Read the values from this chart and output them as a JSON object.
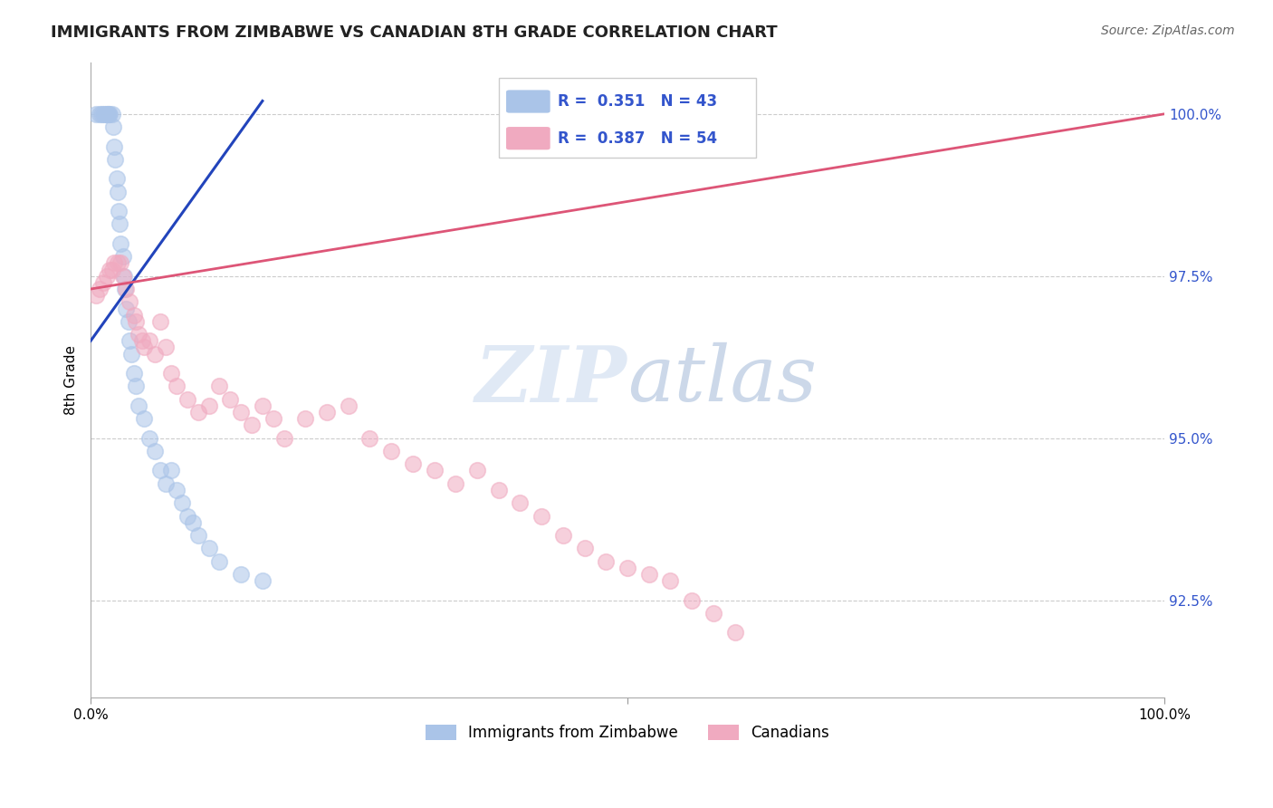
{
  "title": "IMMIGRANTS FROM ZIMBABWE VS CANADIAN 8TH GRADE CORRELATION CHART",
  "source_text": "Source: ZipAtlas.com",
  "ylabel": "8th Grade",
  "xlim": [
    0.0,
    1.0
  ],
  "ylim": [
    91.0,
    100.8
  ],
  "blue_R": 0.351,
  "blue_N": 43,
  "pink_R": 0.387,
  "pink_N": 54,
  "blue_color": "#aac4e8",
  "pink_color": "#f0aac0",
  "blue_line_color": "#2244bb",
  "pink_line_color": "#dd5577",
  "legend_label_blue": "Immigrants from Zimbabwe",
  "legend_label_pink": "Canadians",
  "blue_x": [
    0.005,
    0.008,
    0.01,
    0.012,
    0.013,
    0.015,
    0.016,
    0.017,
    0.018,
    0.02,
    0.021,
    0.022,
    0.023,
    0.024,
    0.025,
    0.026,
    0.027,
    0.028,
    0.03,
    0.031,
    0.032,
    0.033,
    0.035,
    0.036,
    0.038,
    0.04,
    0.042,
    0.045,
    0.05,
    0.055,
    0.06,
    0.065,
    0.07,
    0.075,
    0.08,
    0.085,
    0.09,
    0.095,
    0.1,
    0.11,
    0.12,
    0.14,
    0.16
  ],
  "blue_y": [
    100.0,
    100.0,
    100.0,
    100.0,
    100.0,
    100.0,
    100.0,
    100.0,
    100.0,
    100.0,
    99.8,
    99.5,
    99.3,
    99.0,
    98.8,
    98.5,
    98.3,
    98.0,
    97.8,
    97.5,
    97.3,
    97.0,
    96.8,
    96.5,
    96.3,
    96.0,
    95.8,
    95.5,
    95.3,
    95.0,
    94.8,
    94.5,
    94.3,
    94.5,
    94.2,
    94.0,
    93.8,
    93.7,
    93.5,
    93.3,
    93.1,
    92.9,
    92.8
  ],
  "pink_x": [
    0.005,
    0.008,
    0.012,
    0.015,
    0.018,
    0.02,
    0.022,
    0.025,
    0.028,
    0.03,
    0.033,
    0.036,
    0.04,
    0.042,
    0.045,
    0.048,
    0.05,
    0.055,
    0.06,
    0.065,
    0.07,
    0.075,
    0.08,
    0.09,
    0.1,
    0.11,
    0.12,
    0.13,
    0.14,
    0.15,
    0.16,
    0.17,
    0.18,
    0.2,
    0.22,
    0.24,
    0.26,
    0.28,
    0.3,
    0.32,
    0.34,
    0.36,
    0.38,
    0.4,
    0.42,
    0.44,
    0.46,
    0.48,
    0.5,
    0.52,
    0.54,
    0.56,
    0.58,
    0.6
  ],
  "pink_y": [
    97.2,
    97.3,
    97.4,
    97.5,
    97.6,
    97.6,
    97.7,
    97.7,
    97.7,
    97.5,
    97.3,
    97.1,
    96.9,
    96.8,
    96.6,
    96.5,
    96.4,
    96.5,
    96.3,
    96.8,
    96.4,
    96.0,
    95.8,
    95.6,
    95.4,
    95.5,
    95.8,
    95.6,
    95.4,
    95.2,
    95.5,
    95.3,
    95.0,
    95.3,
    95.4,
    95.5,
    95.0,
    94.8,
    94.6,
    94.5,
    94.3,
    94.5,
    94.2,
    94.0,
    93.8,
    93.5,
    93.3,
    93.1,
    93.0,
    92.9,
    92.8,
    92.5,
    92.3,
    92.0
  ],
  "watermark_zip": "ZIP",
  "watermark_atlas": "atlas",
  "background_color": "#ffffff",
  "grid_color": "#cccccc",
  "blue_line_x0": 0.0,
  "blue_line_y0": 96.5,
  "blue_line_x1": 0.16,
  "blue_line_y1": 100.2,
  "pink_line_x0": 0.0,
  "pink_line_y0": 97.3,
  "pink_line_x1": 1.0,
  "pink_line_y1": 100.0
}
